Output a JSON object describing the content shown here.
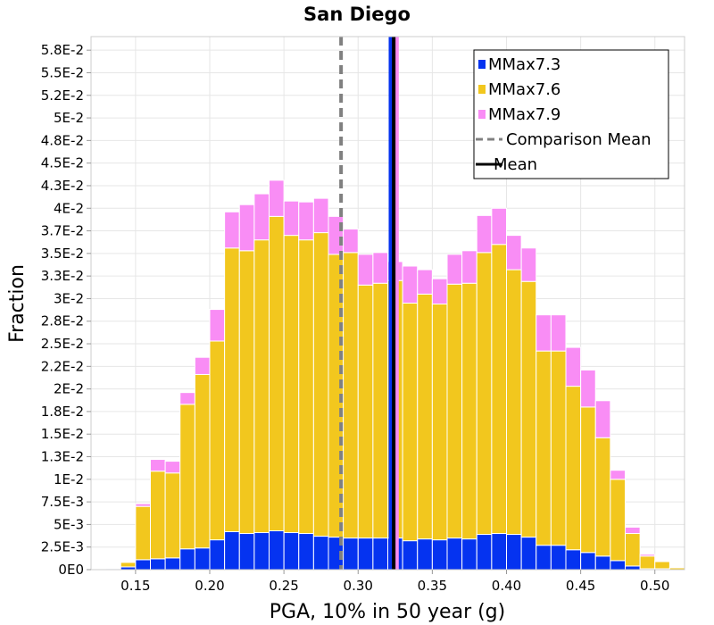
{
  "chart_data": {
    "type": "bar",
    "stacked": true,
    "title": "San Diego",
    "xlabel": "PGA, 10% in 50 year (g)",
    "ylabel": "Fraction",
    "xlim": [
      0.12,
      0.52
    ],
    "ylim": [
      0,
      0.059
    ],
    "x_ticks": [
      0.15,
      0.2,
      0.25,
      0.3,
      0.35,
      0.4,
      0.45,
      0.5
    ],
    "x_tick_labels": [
      "0.15",
      "0.20",
      "0.25",
      "0.30",
      "0.35",
      "0.40",
      "0.45",
      "0.50"
    ],
    "y_ticks": [
      0,
      0.0025,
      0.005,
      0.0075,
      0.01,
      0.0125,
      0.015,
      0.0175,
      0.02,
      0.0225,
      0.025,
      0.0275,
      0.03,
      0.0325,
      0.035,
      0.0375,
      0.04,
      0.0425,
      0.045,
      0.0475,
      0.05,
      0.0525,
      0.055,
      0.0575
    ],
    "y_tick_labels": [
      "0E0",
      "2.5E-3",
      "5E-3",
      "7.5E-3",
      "1E-2",
      "1.3E-2",
      "1.5E-2",
      "1.8E-2",
      "2E-2",
      "2.2E-2",
      "2.5E-2",
      "2.8E-2",
      "3E-2",
      "3.3E-2",
      "3.5E-2",
      "3.7E-2",
      "4E-2",
      "4.3E-2",
      "4.5E-2",
      "4.8E-2",
      "5E-2",
      "5.2E-2",
      "5.5E-2",
      "5.8E-2"
    ],
    "grid": true,
    "legend_position": "top-right",
    "bin_width": 0.01,
    "bin_centers": [
      0.125,
      0.135,
      0.145,
      0.155,
      0.165,
      0.175,
      0.185,
      0.195,
      0.205,
      0.215,
      0.225,
      0.235,
      0.245,
      0.255,
      0.265,
      0.275,
      0.285,
      0.295,
      0.305,
      0.315,
      0.325,
      0.335,
      0.345,
      0.355,
      0.365,
      0.375,
      0.385,
      0.395,
      0.405,
      0.415,
      0.425,
      0.435,
      0.445,
      0.455,
      0.465,
      0.475,
      0.485,
      0.495,
      0.505,
      0.515
    ],
    "series": [
      {
        "name": "MMax7.3",
        "color": "#0533f0",
        "values": [
          0.0,
          0.0001,
          0.0003,
          0.0011,
          0.0012,
          0.0013,
          0.0023,
          0.0024,
          0.0033,
          0.0042,
          0.004,
          0.0041,
          0.0043,
          0.0041,
          0.004,
          0.0037,
          0.0036,
          0.0035,
          0.0035,
          0.0035,
          0.0035,
          0.0032,
          0.0034,
          0.0033,
          0.0035,
          0.0034,
          0.0039,
          0.004,
          0.0039,
          0.0036,
          0.0027,
          0.0027,
          0.0022,
          0.0019,
          0.0015,
          0.001,
          0.0004,
          0.0001,
          0.0001,
          0.0
        ]
      },
      {
        "name": "MMax7.6",
        "color": "#f2c71e",
        "values": [
          0.0,
          0.0,
          0.0005,
          0.0059,
          0.0097,
          0.0094,
          0.016,
          0.0192,
          0.022,
          0.0314,
          0.0313,
          0.0324,
          0.0348,
          0.0329,
          0.0325,
          0.0336,
          0.0313,
          0.0316,
          0.028,
          0.0282,
          0.0285,
          0.0263,
          0.0271,
          0.0261,
          0.0281,
          0.0283,
          0.0312,
          0.032,
          0.0293,
          0.0283,
          0.0215,
          0.0215,
          0.0181,
          0.0161,
          0.0131,
          0.009,
          0.0036,
          0.0014,
          0.0008,
          0.0002
        ]
      },
      {
        "name": "MMax7.9",
        "color": "#f98df5",
        "values": [
          0.0,
          0.0,
          0.0,
          0.0003,
          0.0013,
          0.0013,
          0.0013,
          0.0019,
          0.0035,
          0.004,
          0.0051,
          0.0051,
          0.004,
          0.0038,
          0.0042,
          0.0038,
          0.0042,
          0.0026,
          0.0034,
          0.0034,
          0.0021,
          0.0041,
          0.0027,
          0.0028,
          0.0033,
          0.0036,
          0.0041,
          0.004,
          0.0038,
          0.0037,
          0.004,
          0.004,
          0.0043,
          0.0041,
          0.0041,
          0.001,
          0.0007,
          0.0002,
          0.0001,
          0.0
        ]
      }
    ],
    "vertical_lines": [
      {
        "name": "Comparison Mean",
        "x": 0.2885,
        "color": "#808080",
        "style": "dashed"
      },
      {
        "name": "MMax7.3 mean",
        "x": 0.3218,
        "color": "#0533f0",
        "style": "solid"
      },
      {
        "name": "MMax7.9 mean",
        "x": 0.3262,
        "color": "#f98df5",
        "style": "solid"
      },
      {
        "name": "Mean",
        "x": 0.324,
        "color": "#000000",
        "style": "solid"
      }
    ],
    "legend": [
      {
        "label": "MMax7.3",
        "color": "#0533f0",
        "kind": "box"
      },
      {
        "label": "MMax7.6",
        "color": "#f2c71e",
        "kind": "box"
      },
      {
        "label": "MMax7.9",
        "color": "#f98df5",
        "kind": "box"
      },
      {
        "label": "Comparison Mean",
        "color": "#808080",
        "kind": "dashed"
      },
      {
        "label": "Mean",
        "color": "#000000",
        "kind": "line"
      }
    ]
  }
}
